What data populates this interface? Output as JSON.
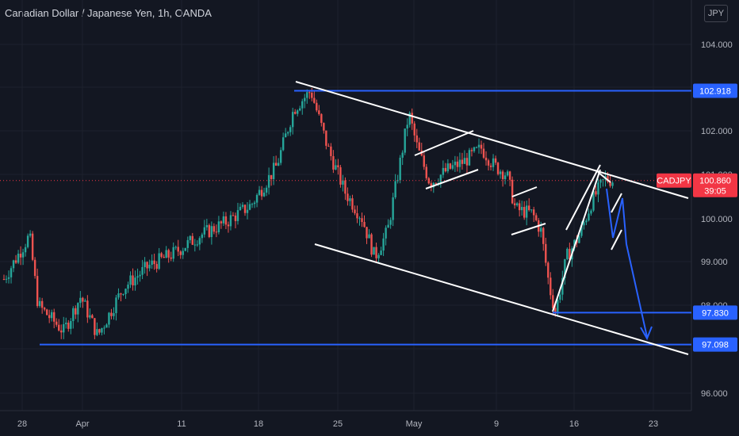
{
  "header": {
    "title": "Canadian Dollar / Japanese Yen, 1h, OANDA",
    "currency_button": "JPY"
  },
  "colors": {
    "background": "#131722",
    "up": "#26a69a",
    "down": "#ef5350",
    "level_line": "#2962ff",
    "trend_line": "#ffffff",
    "projection": "#2962ff",
    "price_label": "#f23645",
    "axis_text": "#b2b5be"
  },
  "chart_data": {
    "type": "candlestick",
    "symbol": "CADJPY",
    "x_ticks": [
      "28",
      "Apr",
      "11",
      "18",
      "25",
      "May",
      "9",
      "16",
      "23"
    ],
    "y_ticks": [
      "104.000",
      "102.000",
      "101.000",
      "100.000",
      "99.000",
      "98.000",
      "96.000"
    ],
    "ylim": [
      95.7,
      104.7
    ],
    "current_price": {
      "label": "CADJPY",
      "value": "100.860",
      "countdown": "39:05"
    },
    "horizontal_levels": [
      {
        "value": 102.918,
        "label": "102.918"
      },
      {
        "value": 97.83,
        "label": "97.830"
      },
      {
        "value": 97.098,
        "label": "97.098"
      }
    ],
    "price_path": [
      [
        0.0,
        98.6
      ],
      [
        3.0,
        99.6
      ],
      [
        4.0,
        98.0
      ],
      [
        7.0,
        97.4
      ],
      [
        9.0,
        98.2
      ],
      [
        11.0,
        97.3
      ],
      [
        14.0,
        98.4
      ],
      [
        17.0,
        98.9
      ],
      [
        20.0,
        99.2
      ],
      [
        23.0,
        99.6
      ],
      [
        26.0,
        99.9
      ],
      [
        29.0,
        100.3
      ],
      [
        32.0,
        101.2
      ],
      [
        34.0,
        102.5
      ],
      [
        36.0,
        102.918
      ],
      [
        38.0,
        101.6
      ],
      [
        40.0,
        100.6
      ],
      [
        42.0,
        100.0
      ],
      [
        43.5,
        99.1
      ],
      [
        45.0,
        99.7
      ],
      [
        46.5,
        101.3
      ],
      [
        47.5,
        102.4
      ],
      [
        48.5,
        101.6
      ],
      [
        50.0,
        100.8
      ],
      [
        52.0,
        101.1
      ],
      [
        54.0,
        101.3
      ],
      [
        56.0,
        101.6
      ],
      [
        57.5,
        101.2
      ],
      [
        59.0,
        101.0
      ],
      [
        60.0,
        100.2
      ],
      [
        62.0,
        100.1
      ],
      [
        63.0,
        99.7
      ],
      [
        64.0,
        98.4
      ],
      [
        64.7,
        97.83
      ],
      [
        66.0,
        99.1
      ],
      [
        67.5,
        99.6
      ],
      [
        69.0,
        100.4
      ],
      [
        70.5,
        100.9
      ],
      [
        71.5,
        100.86
      ]
    ],
    "projection_path": [
      [
        71.5,
        100.7
      ],
      [
        72.5,
        99.9
      ],
      [
        73.5,
        100.4
      ],
      [
        74.5,
        99.6
      ],
      [
        78.0,
        97.1
      ]
    ]
  }
}
